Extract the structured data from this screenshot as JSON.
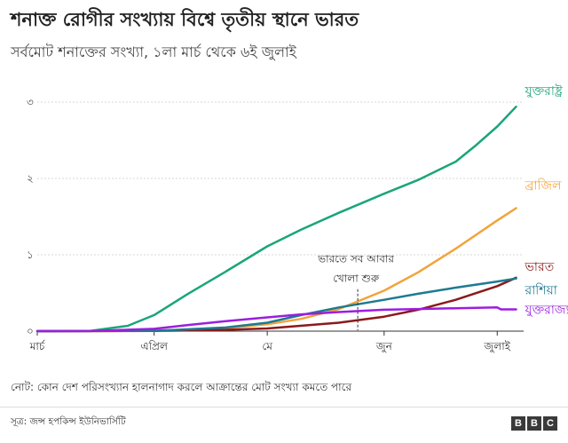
{
  "title": "শনাক্ত রোগীর সংখ্যায় বিশ্বে তৃতীয় স্থানে ভারত",
  "subtitle": "সর্বমোট শনাক্তের সংখ্যা, ১লা মার্চ থেকে ৬ই জুলাই",
  "note": "নোট: কোন দেশ পরিসংখ্যান হালনাগাদ করলে আক্রান্তের মোট সংখ্যা কমতে পারে",
  "source": "সূত্র: জন্স হপকিন্স ইউনিভার্সিটি",
  "logo": [
    "B",
    "B",
    "C"
  ],
  "chart_data": {
    "type": "line",
    "x_unit": "date (2020)",
    "y_unit": "million cases",
    "ylim": [
      0,
      3
    ],
    "yticks": [
      0,
      1,
      2,
      3
    ],
    "ytick_labels": [
      "০",
      "১",
      "২",
      "৩"
    ],
    "xlim": [
      "2020-03-01",
      "2020-07-08"
    ],
    "xticks": [
      "2020-03-01",
      "2020-04-01",
      "2020-05-01",
      "2020-06-01",
      "2020-07-01"
    ],
    "xtick_labels": [
      "মার্চ",
      "এপ্রিল",
      "মে",
      "জুন",
      "জুলাই"
    ],
    "grid": "horizontal",
    "annotation": {
      "date": "2020-05-25",
      "value": 0.15,
      "lines": [
        "ভারতে সব আবার",
        "খোলা শুরু"
      ]
    },
    "series": [
      {
        "name": "যুক্তরাষ্ট্র",
        "color": "#1aa57a",
        "x": [
          "2020-03-01",
          "2020-03-15",
          "2020-03-25",
          "2020-04-01",
          "2020-04-10",
          "2020-04-20",
          "2020-05-01",
          "2020-05-10",
          "2020-05-20",
          "2020-06-01",
          "2020-06-10",
          "2020-06-20",
          "2020-06-25",
          "2020-07-01",
          "2020-07-06"
        ],
        "y": [
          0,
          0.003,
          0.07,
          0.21,
          0.49,
          0.78,
          1.11,
          1.33,
          1.55,
          1.8,
          1.98,
          2.22,
          2.42,
          2.68,
          2.94
        ]
      },
      {
        "name": "ব্রাজিল",
        "color": "#f2a33a",
        "x": [
          "2020-03-01",
          "2020-03-25",
          "2020-04-10",
          "2020-04-20",
          "2020-05-01",
          "2020-05-10",
          "2020-05-20",
          "2020-06-01",
          "2020-06-10",
          "2020-06-20",
          "2020-07-01",
          "2020-07-06"
        ],
        "y": [
          0,
          0.002,
          0.019,
          0.04,
          0.09,
          0.16,
          0.29,
          0.53,
          0.77,
          1.08,
          1.45,
          1.61
        ]
      },
      {
        "name": "ভারত",
        "color": "#8b1a1a",
        "x": [
          "2020-03-01",
          "2020-04-01",
          "2020-04-20",
          "2020-05-01",
          "2020-05-20",
          "2020-06-01",
          "2020-06-10",
          "2020-06-20",
          "2020-07-01",
          "2020-07-06"
        ],
        "y": [
          0,
          0.002,
          0.018,
          0.035,
          0.11,
          0.19,
          0.28,
          0.41,
          0.59,
          0.7
        ]
      },
      {
        "name": "রাশিয়া",
        "color": "#1d7a91",
        "x": [
          "2020-03-01",
          "2020-04-01",
          "2020-04-20",
          "2020-05-01",
          "2020-05-10",
          "2020-05-20",
          "2020-06-01",
          "2020-06-10",
          "2020-06-20",
          "2020-07-01",
          "2020-07-06"
        ],
        "y": [
          0,
          0.003,
          0.048,
          0.11,
          0.21,
          0.31,
          0.41,
          0.49,
          0.57,
          0.65,
          0.69
        ]
      },
      {
        "name": "যুক্তরাজ্য",
        "color": "#9b1ee0",
        "x": [
          "2020-03-01",
          "2020-03-15",
          "2020-04-01",
          "2020-04-10",
          "2020-04-20",
          "2020-05-01",
          "2020-05-10",
          "2020-05-20",
          "2020-06-01",
          "2020-06-10",
          "2020-06-20",
          "2020-07-01",
          "2020-07-02",
          "2020-07-06"
        ],
        "y": [
          0,
          0.001,
          0.03,
          0.08,
          0.13,
          0.18,
          0.22,
          0.25,
          0.28,
          0.29,
          0.3,
          0.31,
          0.285,
          0.285
        ]
      }
    ]
  }
}
